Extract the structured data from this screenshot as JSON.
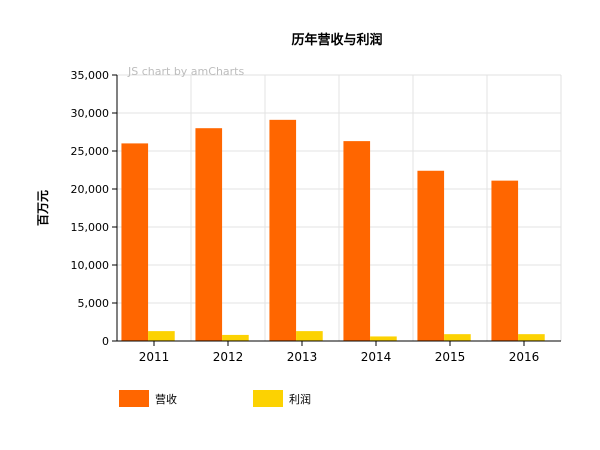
{
  "chart_data": {
    "type": "bar",
    "title": "历年营收与利润",
    "watermark": "JS chart by amCharts",
    "xlabel": "",
    "ylabel": "百万元",
    "categories": [
      "2011",
      "2012",
      "2013",
      "2014",
      "2015",
      "2016"
    ],
    "series": [
      {
        "name": "营收",
        "color": "#ff6600",
        "values": [
          26000,
          28000,
          29100,
          26300,
          22400,
          21100
        ]
      },
      {
        "name": "利润",
        "color": "#fcd202",
        "values": [
          1300,
          800,
          1300,
          600,
          900,
          900
        ]
      }
    ],
    "ylim": [
      0,
      35000
    ],
    "yticks": [
      0,
      5000,
      10000,
      15000,
      20000,
      25000,
      30000,
      35000
    ],
    "ytick_labels": [
      "0",
      "5,000",
      "10,000",
      "15,000",
      "20,000",
      "25,000",
      "30,000",
      "35,000"
    ],
    "grid": true,
    "legend_position": "bottom-left"
  }
}
